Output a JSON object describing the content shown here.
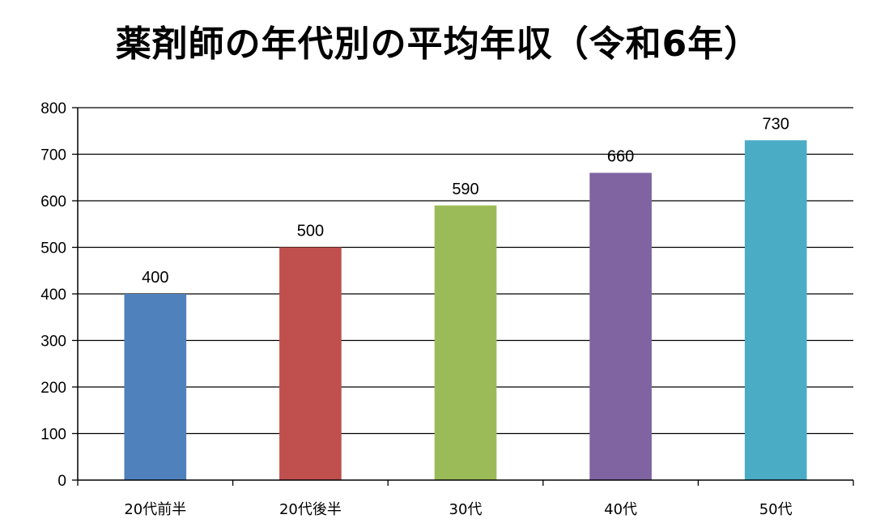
{
  "chart_data": {
    "type": "bar",
    "title": "薬剤師の年代別の平均年収（令和6年）",
    "categories": [
      "20代前半",
      "20代後半",
      "30代",
      "40代",
      "50代"
    ],
    "values": [
      400,
      500,
      590,
      660,
      730
    ],
    "data_labels": [
      "400",
      "500",
      "590",
      "660",
      "730"
    ],
    "ylim": [
      0,
      800
    ],
    "yticks": [
      0,
      100,
      200,
      300,
      400,
      500,
      600,
      700,
      800
    ],
    "xlabel": "",
    "ylabel": "",
    "grid": true,
    "legend": "none",
    "bar_colors": [
      "#4f81bd",
      "#c0504d",
      "#9bbb59",
      "#8064a2",
      "#4bacc6"
    ]
  }
}
